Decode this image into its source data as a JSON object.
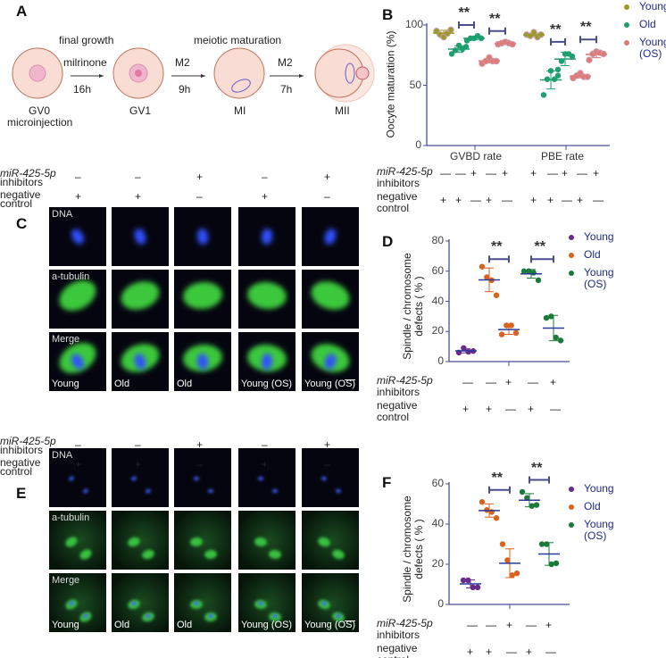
{
  "panels": {
    "a": "A",
    "b": "B",
    "c": "C",
    "d": "D",
    "e": "E",
    "f": "F"
  },
  "scheme": {
    "final_growth": "final growth",
    "meiotic_maturation": "meiotic maturation",
    "steps": [
      {
        "top": "milrinone",
        "bottom": "16h"
      },
      {
        "top": "M2",
        "bottom": "9h"
      },
      {
        "top": "M2",
        "bottom": "7h"
      }
    ],
    "stages": [
      "GV0",
      "GV1",
      "MI",
      "MII"
    ],
    "gv0_sub": "microinjection"
  },
  "treatment_labels": {
    "mir": "miR-425-5p",
    "inhibitors": "inhibitors",
    "negative": "negative",
    "control": "control"
  },
  "image_treatments": {
    "mir": [
      "–",
      "–",
      "+",
      "–",
      "+"
    ],
    "neg": [
      "+",
      "+",
      "–",
      "+",
      "–"
    ]
  },
  "image_rows": [
    "DNA",
    "a-tubulin",
    "Merge"
  ],
  "image_groups": [
    "Young",
    "Old",
    "Old",
    "Young (OS)",
    "Young (OS)"
  ],
  "chart_data": [
    {
      "id": "B",
      "type": "scatter",
      "ylabel": "Oocyte maturation  (%)",
      "ylim": [
        0,
        100
      ],
      "yticks": [
        0,
        50,
        100
      ],
      "categories": [
        "GVBD rate",
        "PBE rate"
      ],
      "legend": [
        {
          "name": "Young",
          "color": "#9a9a2a"
        },
        {
          "name": "Old",
          "color": "#1f9e6e"
        },
        {
          "name": "Young (OS)",
          "color": "#e07a78"
        }
      ],
      "legend_position": "top-right",
      "groups": [
        {
          "cat": 0,
          "series": 0,
          "values": [
            95,
            92,
            90,
            93,
            96
          ]
        },
        {
          "cat": 0,
          "series": 1,
          "values": [
            76,
            79,
            83,
            80,
            82
          ]
        },
        {
          "cat": 0,
          "series": 1,
          "values": [
            87,
            89,
            89,
            91,
            89
          ]
        },
        {
          "cat": 0,
          "series": 2,
          "values": [
            68,
            70,
            73,
            70,
            70
          ]
        },
        {
          "cat": 0,
          "series": 2,
          "values": [
            84,
            85,
            86,
            85,
            84
          ]
        },
        {
          "cat": 1,
          "series": 0,
          "values": [
            92,
            91,
            94,
            90,
            92
          ]
        },
        {
          "cat": 1,
          "series": 1,
          "values": [
            42,
            55,
            62,
            55,
            58
          ]
        },
        {
          "cat": 1,
          "series": 1,
          "values": [
            63,
            70,
            76,
            76,
            74
          ]
        },
        {
          "cat": 1,
          "series": 2,
          "values": [
            56,
            58,
            60,
            57,
            57
          ]
        },
        {
          "cat": 1,
          "series": 2,
          "values": [
            71,
            76,
            78,
            77,
            76
          ]
        }
      ],
      "significance": [
        {
          "from": 1,
          "to": 2,
          "y": 100,
          "label": "**"
        },
        {
          "from": 3,
          "to": 4,
          "y": 95,
          "label": "**"
        },
        {
          "from": 6,
          "to": 7,
          "y": 86,
          "label": "**"
        },
        {
          "from": 8,
          "to": 9,
          "y": 88,
          "label": "**"
        }
      ],
      "mir": [
        "—",
        "—",
        "+",
        "—",
        "+",
        "+",
        "—",
        "+",
        "—",
        "+"
      ],
      "neg": [
        "+",
        "+",
        "—",
        "+",
        "—",
        "+",
        "+",
        "—",
        "+",
        "—"
      ]
    },
    {
      "id": "D",
      "type": "scatter",
      "ylabel": "Spindle / chromosome defects ( % )",
      "ylim": [
        0,
        80
      ],
      "yticks": [
        0,
        20,
        40,
        60,
        80
      ],
      "legend": [
        {
          "name": "Young",
          "color": "#6a2a8a"
        },
        {
          "name": "Old",
          "color": "#d9621e"
        },
        {
          "name": "Young (OS)",
          "color": "#1a7a3a"
        }
      ],
      "legend_position": "top-right",
      "groups": [
        {
          "series": 0,
          "values": [
            6,
            9,
            6.5,
            7
          ]
        },
        {
          "series": 1,
          "values": [
            63,
            56,
            54,
            44
          ]
        },
        {
          "series": 1,
          "values": [
            18,
            24,
            24,
            19
          ]
        },
        {
          "series": 2,
          "values": [
            60,
            60,
            59,
            54
          ]
        },
        {
          "series": 2,
          "values": [
            29,
            30,
            16,
            14
          ]
        }
      ],
      "significance": [
        {
          "from": 1,
          "to": 2,
          "y": 68,
          "label": "**"
        },
        {
          "from": 3,
          "to": 4,
          "y": 68,
          "label": "**"
        }
      ],
      "mir": [
        "—",
        "—",
        "+",
        "—",
        "+"
      ],
      "neg": [
        "+",
        "+",
        "—",
        "+",
        "—"
      ]
    },
    {
      "id": "F",
      "type": "scatter",
      "ylabel": "Spindle / chromosome defects ( % )",
      "ylim": [
        0,
        60
      ],
      "yticks": [
        0,
        20,
        40,
        60
      ],
      "legend": [
        {
          "name": "Young",
          "color": "#6a2a8a"
        },
        {
          "name": "Old",
          "color": "#d9621e"
        },
        {
          "name": "Young (OS)",
          "color": "#1a7a3a"
        }
      ],
      "legend_position": "top-right",
      "groups": [
        {
          "series": 0,
          "values": [
            12,
            12,
            8.5,
            8.5
          ]
        },
        {
          "series": 1,
          "values": [
            51,
            47,
            46,
            43
          ]
        },
        {
          "series": 1,
          "values": [
            30,
            22,
            14.5,
            15.5
          ]
        },
        {
          "series": 2,
          "values": [
            56,
            53,
            49,
            49.5
          ]
        },
        {
          "series": 2,
          "values": [
            30,
            30,
            20,
            20.5
          ]
        }
      ],
      "significance": [
        {
          "from": 1,
          "to": 2,
          "y": 57,
          "label": "**"
        },
        {
          "from": 3,
          "to": 4,
          "y": 62,
          "label": "**"
        }
      ],
      "mir": [
        "—",
        "—",
        "+",
        "—",
        "+"
      ],
      "neg": [
        "+",
        "+",
        "—",
        "+",
        "—"
      ]
    }
  ]
}
